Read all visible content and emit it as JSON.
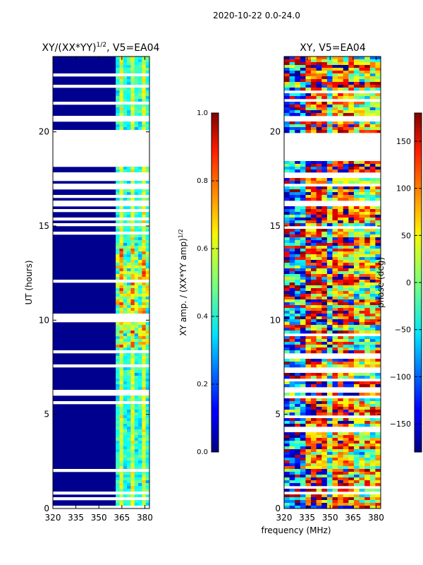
{
  "suptitle": "2020-10-22 0.0-24.0",
  "shared_xlabel": "frequency (MHz)",
  "chart_data": [
    {
      "type": "heatmap",
      "title_main": "XY/(XX*YY)",
      "title_sup": "1/2",
      "title_tail": ", V5=EA04",
      "xlabel": "",
      "ylabel": "UT (hours)",
      "xlim": [
        320,
        383
      ],
      "ylim": [
        0,
        24
      ],
      "xticks": [
        320,
        335,
        350,
        365,
        380
      ],
      "yticks": [
        0,
        5,
        10,
        15,
        20
      ],
      "active_band_mhz": [
        361,
        383
      ],
      "gap_bands_hours": [
        [
          0.75,
          0.95
        ],
        [
          18.2,
          19.9
        ],
        [
          20.55,
          20.8
        ],
        [
          16.9,
          17.3
        ],
        [
          17.6,
          17.8
        ],
        [
          16.05,
          16.3
        ],
        [
          7.5,
          7.7
        ],
        [
          6.05,
          6.35
        ]
      ],
      "colorbar": {
        "label_main": "XY amp. / (XX*YY amp)",
        "label_sup": "1/2",
        "range": [
          0.0,
          1.0
        ],
        "ticks": [
          0.0,
          0.2,
          0.4,
          0.6,
          0.8,
          1.0
        ],
        "tick_labels": [
          "0.0",
          "0.2",
          "0.4",
          "0.6",
          "0.8",
          "1.0"
        ]
      }
    },
    {
      "type": "heatmap",
      "title": "XY, V5=EA04",
      "xlabel": "frequency (MHz)",
      "ylabel": "",
      "xlim": [
        320,
        383
      ],
      "ylim": [
        0,
        24
      ],
      "xticks": [
        320,
        335,
        350,
        365,
        380
      ],
      "yticks": [
        0,
        5,
        10,
        15,
        20
      ],
      "gap_bands_hours": [
        [
          0.75,
          0.95
        ],
        [
          18.65,
          19.9
        ],
        [
          20.55,
          20.8
        ],
        [
          16.05,
          16.3
        ],
        [
          17.6,
          17.8
        ],
        [
          6.2,
          6.35
        ],
        [
          22.1,
          22.25
        ]
      ],
      "colorbar": {
        "label": "phase (deg)",
        "range": [
          -180,
          180
        ],
        "ticks": [
          150,
          100,
          50,
          0,
          -50,
          -100,
          -150
        ],
        "tick_labels": [
          "150",
          "100",
          "50",
          "0",
          "−50",
          "−100",
          "−150"
        ]
      }
    }
  ]
}
